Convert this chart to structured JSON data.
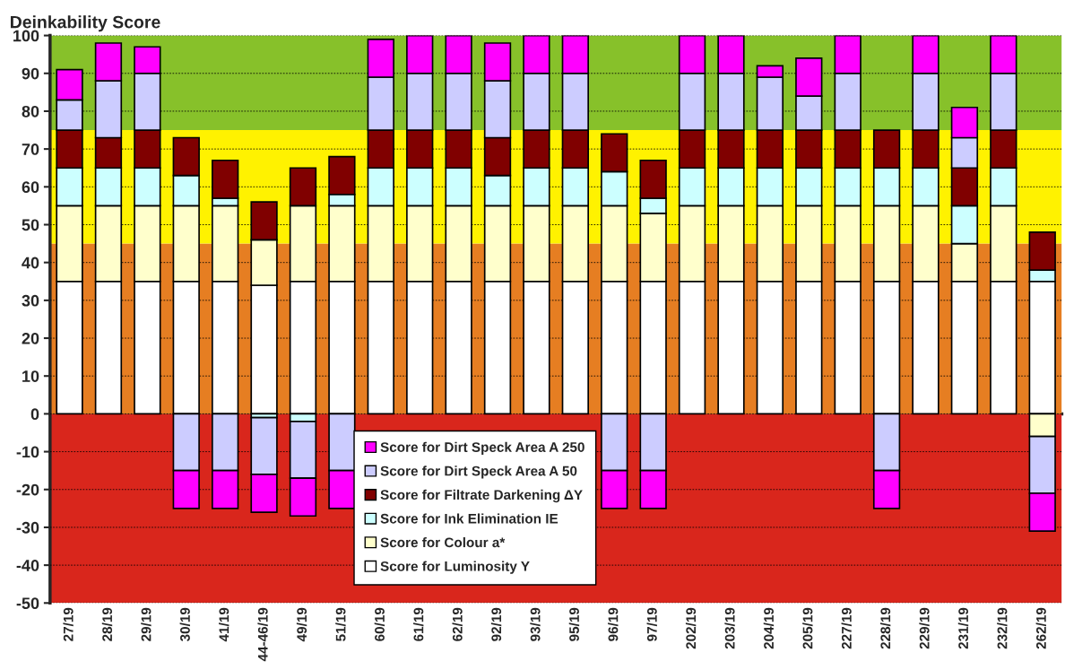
{
  "chart_data": {
    "type": "bar",
    "stacked": true,
    "title": "Deinkability Score",
    "categories": [
      "27/19",
      "28/19",
      "29/19",
      "30/19",
      "41/19",
      "44-46/19",
      "49/19",
      "51/19",
      "60/19",
      "61/19",
      "62/19",
      "92/19",
      "93/19",
      "95/19",
      "96/19",
      "97/19",
      "202/19",
      "203/19",
      "204/19",
      "205/19",
      "227/19",
      "228/19",
      "229/19",
      "231/19",
      "232/19",
      "262/19"
    ],
    "series": [
      {
        "name": "Score for Luminosity Y",
        "color": "#ffffff",
        "values": [
          35,
          35,
          35,
          35,
          35,
          34,
          35,
          35,
          35,
          35,
          35,
          35,
          35,
          35,
          35,
          35,
          35,
          35,
          35,
          35,
          35,
          35,
          35,
          35,
          35,
          35
        ]
      },
      {
        "name": "Score for Colour a*",
        "color": "#ffffcc",
        "values": [
          20,
          20,
          20,
          20,
          20,
          12,
          20,
          20,
          20,
          20,
          20,
          20,
          20,
          20,
          20,
          18,
          20,
          20,
          20,
          20,
          20,
          20,
          20,
          10,
          20,
          -6
        ]
      },
      {
        "name": "Score for Ink Elimination IE",
        "color": "#ccffff",
        "values": [
          10,
          10,
          10,
          8,
          2,
          -1,
          -2,
          3,
          10,
          10,
          10,
          8,
          10,
          10,
          9,
          4,
          10,
          10,
          10,
          10,
          10,
          10,
          10,
          10,
          10,
          3
        ]
      },
      {
        "name": "Score for Filtrate Darkening ΔY",
        "color": "#800000",
        "values": [
          10,
          8,
          10,
          10,
          10,
          10,
          10,
          10,
          10,
          10,
          10,
          10,
          10,
          10,
          10,
          10,
          10,
          10,
          10,
          10,
          10,
          10,
          10,
          10,
          10,
          10
        ]
      },
      {
        "name": "Score for Dirt Speck Area A 50",
        "color": "#ccccff",
        "values": [
          8,
          15,
          15,
          -15,
          -15,
          -15,
          -15,
          -15,
          14,
          15,
          15,
          15,
          15,
          15,
          -15,
          -15,
          15,
          15,
          14,
          9,
          15,
          -15,
          15,
          8,
          15,
          -15
        ]
      },
      {
        "name": "Score for Dirt Speck Area A 250",
        "color": "#ff00ff",
        "values": [
          8,
          10,
          7,
          -10,
          -10,
          -10,
          -10,
          -10,
          10,
          10,
          10,
          10,
          10,
          10,
          -10,
          -10,
          10,
          10,
          3,
          10,
          10,
          -10,
          10,
          8,
          10,
          -10
        ]
      }
    ],
    "ylim": [
      -50,
      100
    ],
    "yticks": [
      -50,
      -40,
      -30,
      -20,
      -10,
      0,
      10,
      20,
      30,
      40,
      50,
      60,
      70,
      80,
      90,
      100
    ],
    "grid": "y",
    "legend": "bottom",
    "bands": [
      {
        "axis": "y",
        "from": -50,
        "to": 0,
        "color": "#d9261c"
      },
      {
        "axis": "y",
        "from": 0,
        "to": 45,
        "color": "#e67e22"
      },
      {
        "axis": "y",
        "from": 45,
        "to": 75,
        "color": "#fff200"
      },
      {
        "axis": "y",
        "from": 75,
        "to": 100,
        "color": "#87c12a"
      }
    ]
  }
}
